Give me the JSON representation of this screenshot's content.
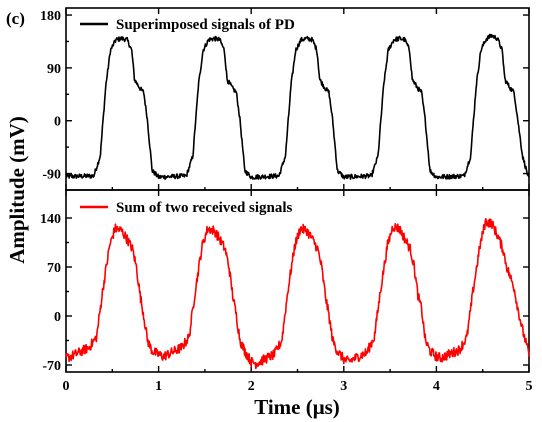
{
  "figure": {
    "panel_label": "(c)",
    "ylabel": "Amplitude (mV)",
    "xlabel": "Time (μs)"
  },
  "chart_data": [
    {
      "type": "line",
      "title": "",
      "xlim": [
        0,
        5
      ],
      "ylim": [
        -118,
        192
      ],
      "xticks": [
        0,
        1,
        2,
        3,
        4,
        5
      ],
      "xtick_labels": [
        "0",
        "1",
        "2",
        "3",
        "4",
        "5"
      ],
      "yticks": [
        -90,
        0,
        90,
        180
      ],
      "ytick_labels": [
        "-90",
        "0",
        "90",
        "180"
      ],
      "minor_yticks": [
        -45,
        45,
        135
      ],
      "grid": false,
      "legend_position": "top",
      "series": [
        {
          "name": "Superimposed signals of PD",
          "color": "#000000",
          "noise": 4,
          "x": [
            0.0,
            0.3,
            0.37,
            0.43,
            0.48,
            0.54,
            0.6,
            0.66,
            0.71,
            0.74,
            0.8,
            0.84,
            0.88,
            0.93,
            1.0,
            1.3,
            1.37,
            1.43,
            1.48,
            1.54,
            1.6,
            1.66,
            1.71,
            1.74,
            1.8,
            1.84,
            1.88,
            1.93,
            2.0,
            2.3,
            2.37,
            2.43,
            2.48,
            2.54,
            2.6,
            2.66,
            2.71,
            2.74,
            2.8,
            2.84,
            2.88,
            2.93,
            3.0,
            3.3,
            3.37,
            3.43,
            3.48,
            3.54,
            3.6,
            3.66,
            3.71,
            3.74,
            3.8,
            3.84,
            3.88,
            3.93,
            4.0,
            4.3,
            4.37,
            4.43,
            4.48,
            4.54,
            4.6,
            4.66,
            4.71,
            4.74,
            4.8,
            4.84,
            4.88,
            4.93,
            5.0
          ],
          "y": [
            -95,
            -94,
            -60,
            60,
            120,
            138,
            140,
            138,
            120,
            70,
            55,
            48,
            0,
            -85,
            -96,
            -94,
            -60,
            60,
            120,
            138,
            140,
            138,
            120,
            70,
            55,
            48,
            0,
            -85,
            -96,
            -94,
            -60,
            60,
            120,
            138,
            140,
            138,
            120,
            70,
            55,
            48,
            0,
            -85,
            -96,
            -94,
            -60,
            60,
            120,
            138,
            140,
            138,
            120,
            70,
            55,
            48,
            0,
            -85,
            -96,
            -94,
            -60,
            60,
            120,
            140,
            145,
            140,
            120,
            70,
            55,
            48,
            0,
            -60,
            -100
          ]
        },
        {
          "name": "Sum of two received signals",
          "color": "#ff0000",
          "noise": 7,
          "x": [
            0.0,
            0.05,
            0.25,
            0.33,
            0.4,
            0.47,
            0.53,
            0.6,
            0.66,
            0.72,
            0.76,
            0.8,
            0.84,
            0.88,
            0.93,
            1.0,
            1.05,
            1.25,
            1.33,
            1.4,
            1.47,
            1.53,
            1.6,
            1.66,
            1.72,
            1.76,
            1.8,
            1.84,
            1.88,
            1.93,
            2.0,
            2.05,
            2.25,
            2.33,
            2.4,
            2.47,
            2.53,
            2.6,
            2.66,
            2.72,
            2.76,
            2.8,
            2.84,
            2.88,
            2.93,
            3.0,
            3.05,
            3.25,
            3.33,
            3.4,
            3.47,
            3.53,
            3.6,
            3.66,
            3.72,
            3.76,
            3.8,
            3.84,
            3.88,
            3.93,
            4.0,
            4.05,
            4.25,
            4.33,
            4.4,
            4.47,
            4.53,
            4.6,
            4.66,
            4.72,
            4.76,
            4.8,
            4.84,
            4.88,
            4.93,
            5.0
          ],
          "y": [
            -60,
            -58,
            -45,
            -30,
            40,
            100,
            125,
            122,
            110,
            95,
            70,
            30,
            0,
            -35,
            -50,
            -55,
            -58,
            -45,
            -30,
            40,
            100,
            125,
            122,
            110,
            95,
            70,
            30,
            0,
            -35,
            -50,
            -65,
            -68,
            -55,
            -35,
            40,
            100,
            125,
            122,
            110,
            95,
            70,
            30,
            0,
            -35,
            -50,
            -62,
            -65,
            -52,
            -30,
            40,
            100,
            128,
            125,
            110,
            95,
            70,
            30,
            10,
            -35,
            -50,
            -58,
            -60,
            -48,
            -30,
            40,
            100,
            135,
            132,
            115,
            95,
            70,
            55,
            40,
            10,
            -20,
            -55
          ]
        }
      ]
    },
    {
      "type": "line",
      "title": "",
      "xlim": [
        0,
        5
      ],
      "ylim": [
        -80,
        180
      ],
      "xticks": [
        0,
        1,
        2,
        3,
        4,
        5
      ],
      "xtick_labels": [
        "0",
        "1",
        "2",
        "3",
        "4",
        "5"
      ],
      "yticks": [
        -70,
        0,
        70,
        140
      ],
      "ytick_labels": [
        "-70",
        "0",
        "70",
        "140"
      ],
      "minor_yticks": [
        -35,
        35,
        105
      ],
      "grid": false,
      "legend_position": "top"
    }
  ]
}
